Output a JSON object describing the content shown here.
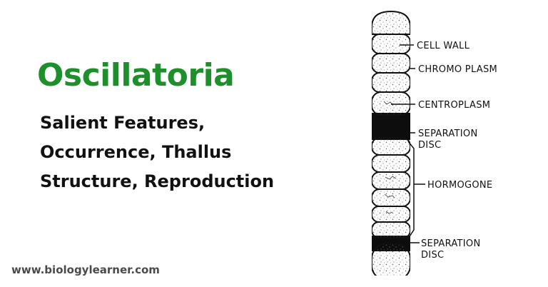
{
  "header": {
    "title": "Oscillatoria",
    "subtitle_lines": [
      "Salient Features,",
      "Occurrence, Thallus",
      "Structure, Reproduction"
    ]
  },
  "footer": {
    "website": "www.biologylearner.com"
  },
  "diagram": {
    "labels": {
      "cell_wall": "CELL WALL",
      "chromoplasm": "CHROMO PLASM",
      "centroplasm": "CENTROPLASM",
      "separation_disc_1": [
        "SEPARATION",
        "DISC"
      ],
      "hormogone": "HORMOGONE",
      "separation_disc_2": [
        "SEPARATION",
        "DISC"
      ]
    }
  },
  "colors": {
    "title": "#1f8f2c",
    "text": "#111111",
    "website": "#4a4a4a",
    "line": "#111111"
  }
}
